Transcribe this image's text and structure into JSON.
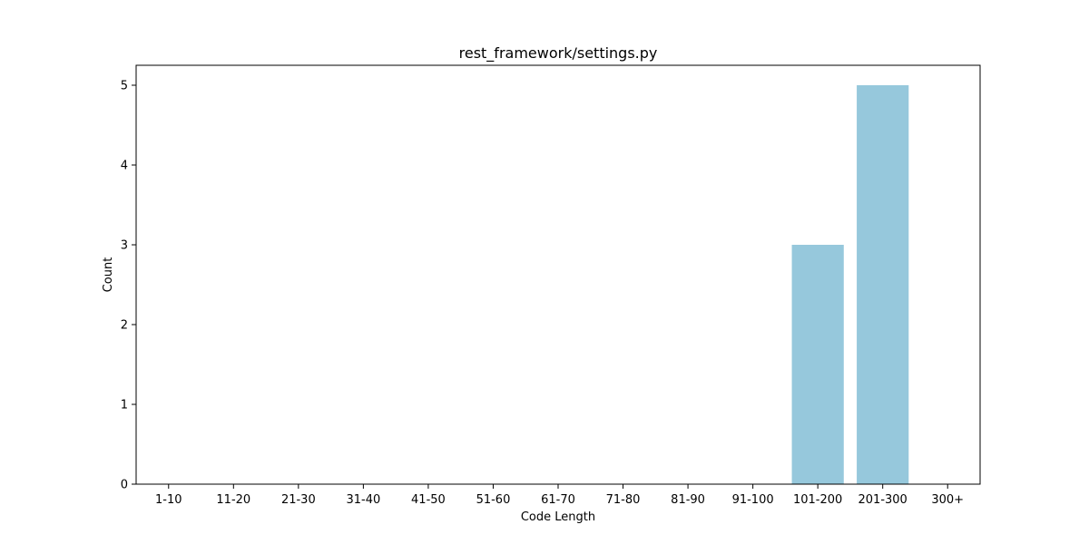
{
  "chart_data": {
    "type": "bar",
    "title": "rest_framework/settings.py",
    "xlabel": "Code Length",
    "ylabel": "Count",
    "categories": [
      "1-10",
      "11-20",
      "21-30",
      "31-40",
      "41-50",
      "51-60",
      "61-70",
      "71-80",
      "81-90",
      "91-100",
      "101-200",
      "201-300",
      "300+"
    ],
    "values": [
      0,
      0,
      0,
      0,
      0,
      0,
      0,
      0,
      0,
      0,
      3,
      5,
      0
    ],
    "ylim": [
      0,
      5.25
    ],
    "yticks": [
      0,
      1,
      2,
      3,
      4,
      5
    ],
    "grid": false,
    "legend": "none",
    "bar_color": "#96c8dc"
  }
}
